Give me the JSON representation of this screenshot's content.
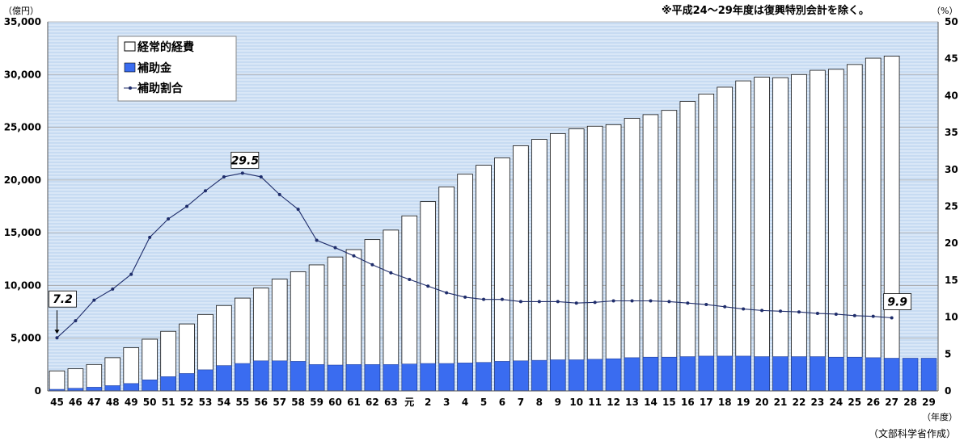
{
  "note": "※平成24～29年度は復興特別会計を除く。",
  "source": "（文部科学省作成）",
  "y_left_unit": "（億円）",
  "y_right_unit": "（%）",
  "x_unit": "（年度）",
  "chart_data": {
    "type": "bar",
    "categories": [
      "45",
      "46",
      "47",
      "48",
      "49",
      "50",
      "51",
      "52",
      "53",
      "54",
      "55",
      "56",
      "57",
      "58",
      "59",
      "60",
      "61",
      "62",
      "63",
      "元",
      "2",
      "3",
      "4",
      "5",
      "6",
      "7",
      "8",
      "9",
      "10",
      "11",
      "12",
      "13",
      "14",
      "15",
      "16",
      "17",
      "18",
      "19",
      "20",
      "21",
      "22",
      "23",
      "24",
      "25",
      "26",
      "27",
      "28",
      "29"
    ],
    "left_axis": {
      "min": 0,
      "max": 35000,
      "ticks": [
        "0",
        "5,000",
        "10,000",
        "15,000",
        "20,000",
        "25,000",
        "30,000",
        "35,000"
      ],
      "tick_values": [
        0,
        5000,
        10000,
        15000,
        20000,
        25000,
        30000,
        35000
      ]
    },
    "right_axis": {
      "min": 0,
      "max": 50,
      "ticks": [
        "0",
        "5",
        "10",
        "15",
        "20",
        "25",
        "30",
        "35",
        "40",
        "45",
        "50"
      ],
      "tick_values": [
        0,
        5,
        10,
        15,
        20,
        25,
        30,
        35,
        40,
        45,
        50
      ]
    },
    "series": [
      {
        "name": "経常的経費",
        "kind": "bar",
        "axis": "left",
        "color": "#ffffff",
        "values": [
          1900,
          2100,
          2500,
          3150,
          4100,
          4900,
          5650,
          6350,
          7250,
          8100,
          8800,
          9750,
          10600,
          11300,
          11950,
          12700,
          13400,
          14350,
          15250,
          16600,
          17950,
          19350,
          20550,
          21400,
          22100,
          23250,
          23850,
          24400,
          24850,
          25100,
          25250,
          25850,
          26200,
          26600,
          27450,
          28150,
          28800,
          29400,
          29750,
          29700,
          30000,
          30400,
          30500,
          30950,
          31550,
          31750,
          0,
          0
        ]
      },
      {
        "name": "補助金",
        "kind": "bar",
        "axis": "left",
        "color": "#3a6cf0",
        "values": [
          150,
          250,
          350,
          500,
          700,
          1050,
          1350,
          1650,
          2000,
          2400,
          2600,
          2850,
          2850,
          2800,
          2500,
          2450,
          2500,
          2500,
          2500,
          2550,
          2600,
          2600,
          2650,
          2700,
          2800,
          2850,
          2900,
          2950,
          2950,
          3000,
          3050,
          3150,
          3200,
          3200,
          3250,
          3300,
          3300,
          3300,
          3250,
          3250,
          3250,
          3250,
          3200,
          3200,
          3150,
          3100,
          3100,
          3100
        ]
      },
      {
        "name": "補助割合",
        "kind": "line",
        "axis": "right",
        "color": "#1f2d6b",
        "values": [
          7.2,
          9.5,
          12.3,
          13.8,
          15.8,
          20.8,
          23.3,
          25.0,
          27.1,
          29.0,
          29.5,
          29.0,
          26.6,
          24.6,
          20.4,
          19.4,
          18.3,
          17.1,
          16.0,
          15.1,
          14.2,
          13.3,
          12.7,
          12.4,
          12.4,
          12.1,
          12.1,
          12.1,
          11.9,
          12.0,
          12.2,
          12.2,
          12.2,
          12.1,
          11.9,
          11.7,
          11.4,
          11.1,
          10.9,
          10.8,
          10.7,
          10.5,
          10.4,
          10.2,
          10.1,
          9.9,
          null,
          null
        ]
      }
    ],
    "annotations": [
      {
        "label": "7.2",
        "index": 0
      },
      {
        "label": "29.5",
        "index": 10
      },
      {
        "label": "9.9",
        "index": 45
      }
    ],
    "legend_position": "top-left"
  }
}
